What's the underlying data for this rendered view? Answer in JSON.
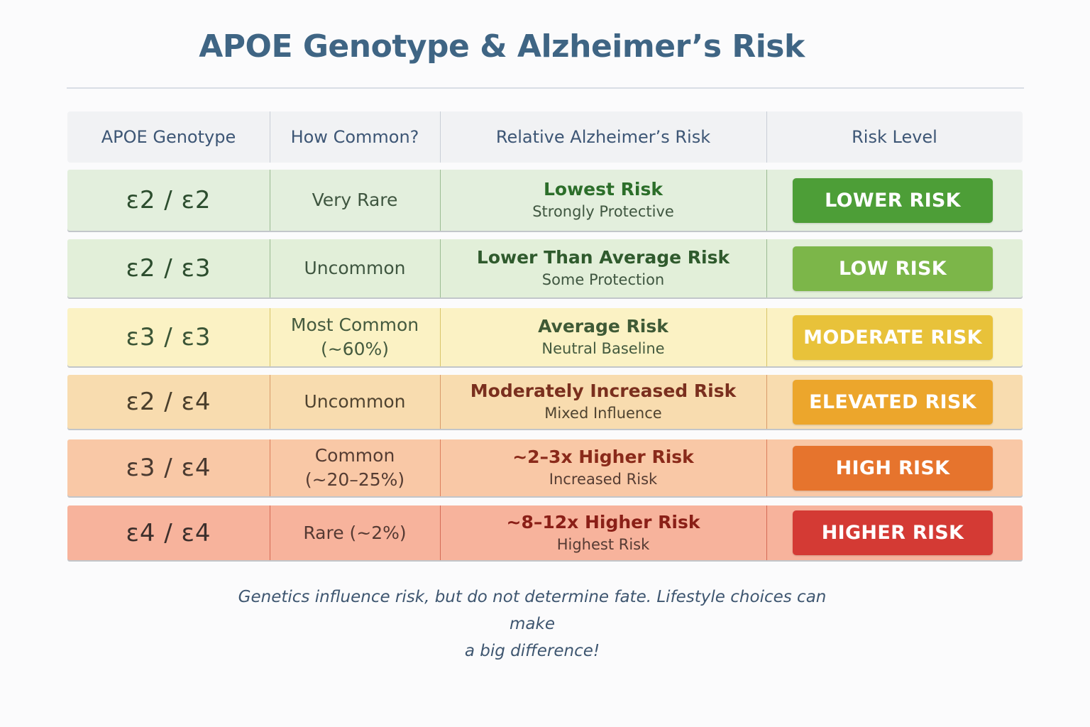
{
  "title": "APOE Genotype & Alzheimer’s Risk",
  "columns": {
    "genotype": "APOE Genotype",
    "common": "How Common?",
    "relative": "Relative Alzheimer’s Risk",
    "level": "Risk Level"
  },
  "rows": [
    {
      "genotype": "ε2 / ε2",
      "common": [
        "Very Rare"
      ],
      "risk_main": "Lowest Risk",
      "risk_sub": "Strongly Protective",
      "badge": "LOWER RISK",
      "colors": {
        "bg": "#e3efdd",
        "text": "#2c4d2e",
        "main": "#2c6e2a",
        "sub": "#3f5640",
        "divider": "#9bbb92",
        "badge": "#4d9e37"
      }
    },
    {
      "genotype": "ε2 / ε3",
      "common": [
        "Uncommon"
      ],
      "risk_main": "Lower Than Average Risk",
      "risk_sub": "Some Protection",
      "badge": "LOW RISK",
      "colors": {
        "bg": "#e2efd9",
        "text": "#2c4d2e",
        "main": "#2f5a2d",
        "sub": "#3f5640",
        "divider": "#9bbb92",
        "badge": "#7cb649"
      }
    },
    {
      "genotype": "ε3 / ε3",
      "common": [
        "Most Common",
        "(~60%)"
      ],
      "risk_main": "Average Risk",
      "risk_sub": "Neutral Baseline",
      "badge": "MODERATE RISK",
      "colors": {
        "bg": "#fbf2c4",
        "text": "#3b5536",
        "main": "#3f5a36",
        "sub": "#445a3e",
        "divider": "#d8c56a",
        "badge": "#e8c23a"
      }
    },
    {
      "genotype": "ε2 / ε4",
      "common": [
        "Uncommon"
      ],
      "risk_main": "Moderately Increased Risk",
      "risk_sub": "Mixed Influence",
      "badge": "ELEVATED RISK",
      "colors": {
        "bg": "#f8dcaf",
        "text": "#4a3f2c",
        "main": "#7a2f1e",
        "sub": "#4f4330",
        "divider": "#d99a6a",
        "badge": "#eca62c"
      }
    },
    {
      "genotype": "ε3 / ε4",
      "common": [
        "Common",
        "(~20–25%)"
      ],
      "risk_main": "~2–3x Higher Risk",
      "risk_sub": "Increased Risk",
      "badge": "HIGH RISK",
      "colors": {
        "bg": "#f9c8a6",
        "text": "#4a3a30",
        "main": "#8a2a1a",
        "sub": "#553c32",
        "divider": "#dc7e5c",
        "badge": "#e6742d"
      }
    },
    {
      "genotype": "ε4 / ε4",
      "common": [
        "Rare (~2%)"
      ],
      "risk_main": "~8–12x Higher Risk",
      "risk_sub": "Highest Risk",
      "badge": "HIGHER RISK",
      "colors": {
        "bg": "#f7b39c",
        "text": "#3c2f2c",
        "main": "#8a1f17",
        "sub": "#553a33",
        "divider": "#d56a55",
        "badge": "#d43a34"
      }
    }
  ],
  "footnote": [
    "Genetics influence risk, but do not determine fate. Lifestyle choices can make",
    "a big difference!"
  ]
}
